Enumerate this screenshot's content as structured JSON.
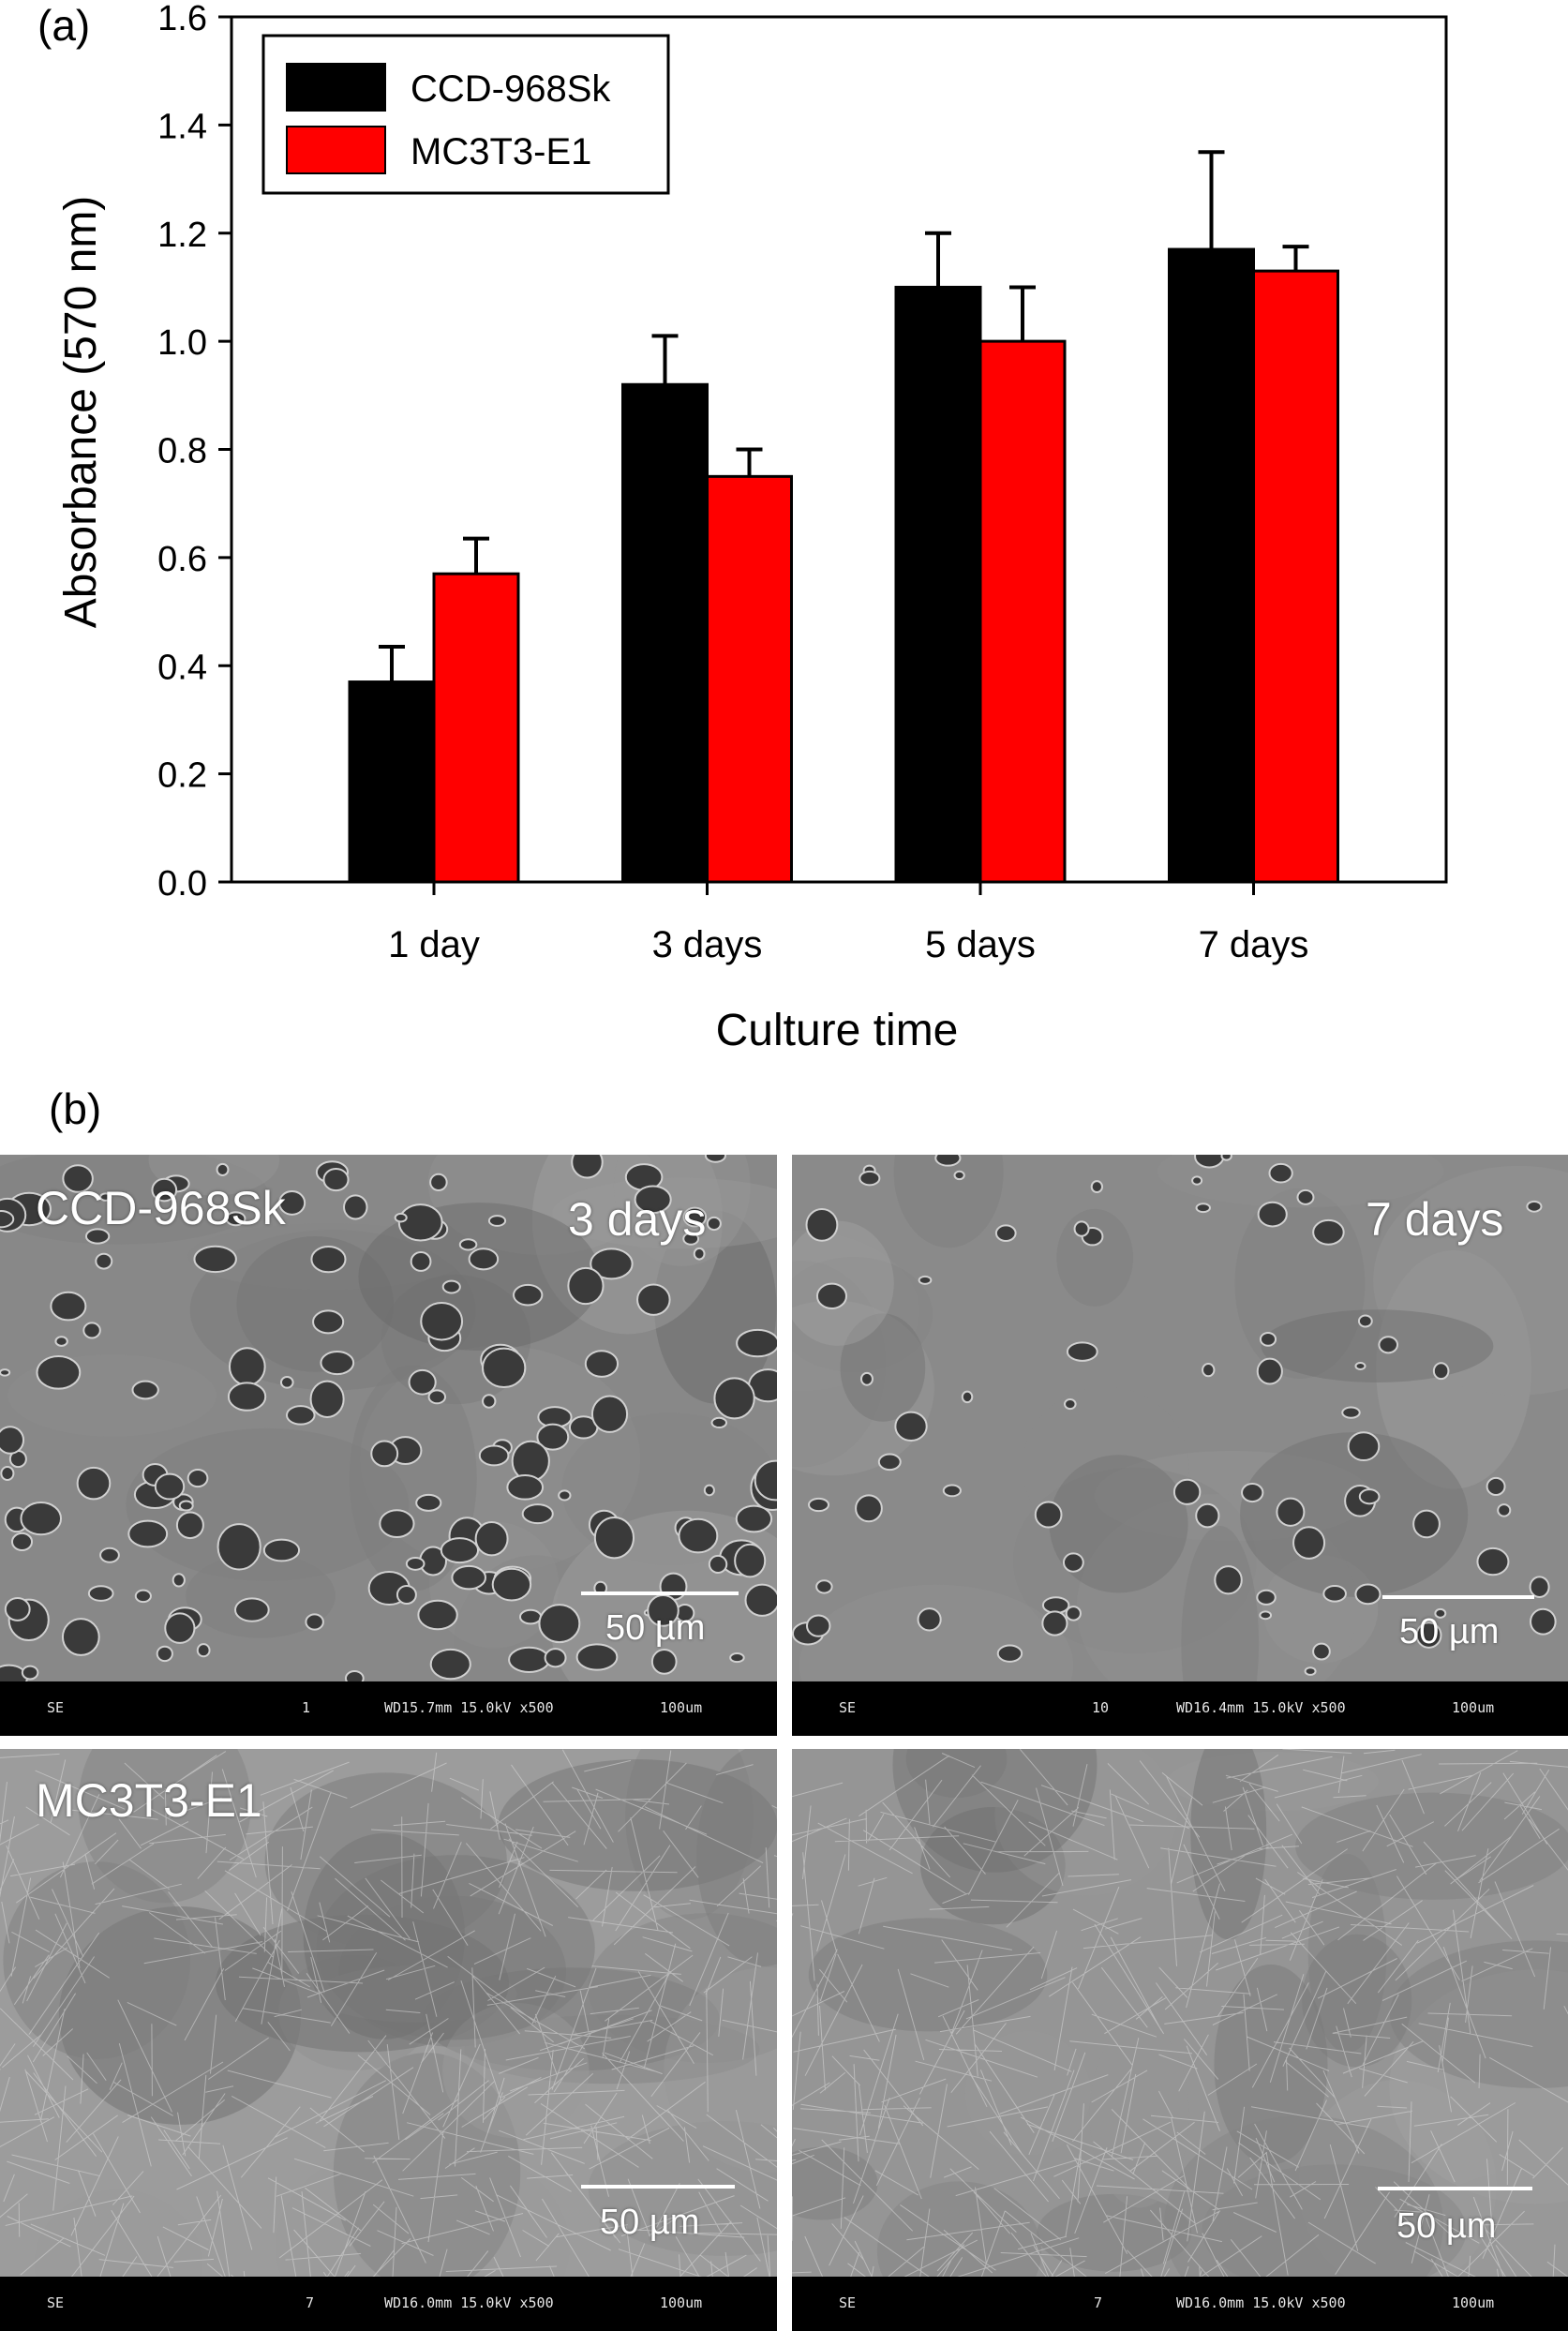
{
  "panel_a": {
    "label": "(a)"
  },
  "panel_b": {
    "label": "(b)"
  },
  "chart_data": {
    "type": "bar",
    "categories": [
      "1 day",
      "3 days",
      "5 days",
      "7 days"
    ],
    "xlabel": "Culture time",
    "ylabel": "Absorbance (570 nm)",
    "ylim": [
      0,
      1.6
    ],
    "yticks": [
      "0.0",
      "0.2",
      "0.4",
      "0.6",
      "0.8",
      "1.0",
      "1.2",
      "1.4",
      "1.6"
    ],
    "legend_position": "top-left",
    "grid": false,
    "series": [
      {
        "name": "CCD-968Sk",
        "color": "#000000",
        "values": [
          0.37,
          0.92,
          1.1,
          1.17
        ],
        "errors": [
          0.065,
          0.09,
          0.1,
          0.18
        ]
      },
      {
        "name": "MC3T3-E1",
        "color": "#ff0000",
        "values": [
          0.57,
          0.75,
          1.0,
          1.13
        ],
        "errors": [
          0.065,
          0.05,
          0.1,
          0.045
        ]
      }
    ]
  },
  "sem_images": [
    {
      "cell_label": "CCD-968Sk",
      "day_label": "3 days",
      "scale_bar": "50 µm",
      "footer": {
        "mode": "SE",
        "num": "1",
        "params": "WD15.7mm 15.0kV x500",
        "scale": "100um"
      }
    },
    {
      "cell_label": "",
      "day_label": "7 days",
      "scale_bar": "50 µm",
      "footer": {
        "mode": "SE",
        "num": "10",
        "params": "WD16.4mm 15.0kV x500",
        "scale": "100um"
      }
    },
    {
      "cell_label": "MC3T3-E1",
      "day_label": "",
      "scale_bar": "50 µm",
      "footer": {
        "mode": "SE",
        "num": "7",
        "params": "WD16.0mm 15.0kV x500",
        "scale": "100um"
      }
    },
    {
      "cell_label": "",
      "day_label": "",
      "scale_bar": "50 µm",
      "footer": {
        "mode": "SE",
        "num": "7",
        "params": "WD16.0mm 15.0kV x500",
        "scale": "100um"
      }
    }
  ]
}
